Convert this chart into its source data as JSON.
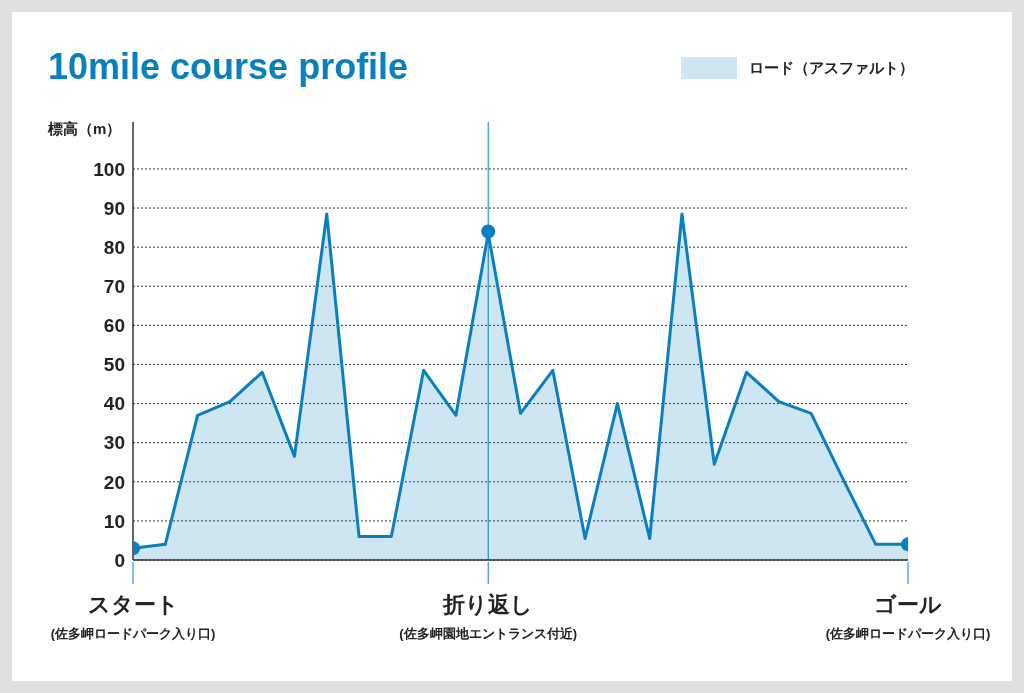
{
  "chart_data": {
    "type": "area",
    "title": "10mile course profile",
    "ylabel": "標高（m）",
    "categories": [
      "スタート",
      null,
      null,
      null,
      null,
      null,
      null,
      null,
      null,
      null,
      null,
      "折り返し",
      null,
      null,
      null,
      null,
      null,
      null,
      null,
      null,
      null,
      null,
      null,
      null,
      "ゴール"
    ],
    "annotations": [
      "(佐多岬ロードパーク入り口)",
      "(佐多岬園地エントランス付近)",
      "(佐多岬ロードパーク入り口)"
    ],
    "ylim": [
      0,
      112
    ],
    "yticks": [
      0,
      10,
      20,
      30,
      40,
      50,
      60,
      70,
      80,
      90,
      100
    ],
    "grid": "y",
    "legend": "top right",
    "series": [
      {
        "name": "ロード（アスファルト）",
        "color": "#0a7fc0",
        "values": [
          3,
          4,
          37,
          40.5,
          48,
          26.5,
          88.5,
          6,
          6,
          48.5,
          37,
          83.5,
          37.5,
          48.5,
          5.5,
          40,
          5.5,
          88.5,
          24.5,
          48,
          40.5,
          37.5,
          20.5,
          4,
          4
        ]
      },
      {
        "type": "scatter",
        "marker": "circle",
        "color": "#0a7fc0",
        "values": [
          3,
          null,
          null,
          null,
          null,
          null,
          null,
          null,
          null,
          null,
          null,
          84,
          null,
          null,
          null,
          null,
          null,
          null,
          null,
          null,
          null,
          null,
          null,
          null,
          4
        ]
      }
    ],
    "ref_lines": [
      {
        "axis": "x",
        "value": "折り返し",
        "color": "#0a7fc0"
      }
    ]
  }
}
